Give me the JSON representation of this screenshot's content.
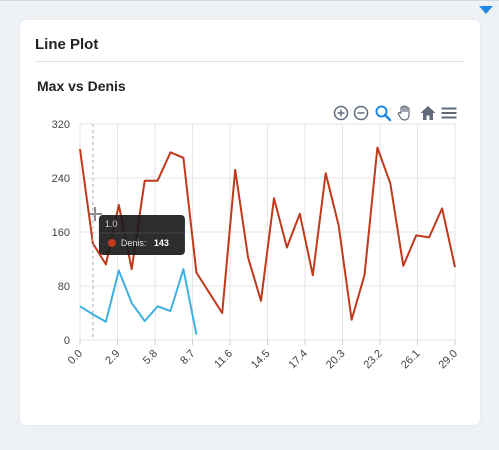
{
  "card": {
    "title": "Line Plot"
  },
  "toolbar": {
    "tools": [
      {
        "name": "zoom-in-icon"
      },
      {
        "name": "zoom-out-icon"
      },
      {
        "name": "zoom-select-icon"
      },
      {
        "name": "pan-hand-icon"
      },
      {
        "name": "reset-home-icon"
      },
      {
        "name": "menu-icon"
      }
    ]
  },
  "tooltip": {
    "x_label": "1.0",
    "series_label": "Denis:",
    "value": "143"
  },
  "colors": {
    "Denis": "#c0391b",
    "Max": "#3fb0e0",
    "accent": "#1e88e5"
  },
  "chart_data": {
    "type": "line",
    "title": "Max vs Denis",
    "xlabel": "",
    "ylabel": "",
    "xlim": [
      0,
      29
    ],
    "ylim": [
      0,
      320
    ],
    "x_ticks": [
      "0.0",
      "2.9",
      "5.8",
      "8.7",
      "11.6",
      "14.5",
      "17.4",
      "20.3",
      "23.2",
      "26.1",
      "29.0"
    ],
    "y_ticks": [
      "0",
      "80",
      "160",
      "240",
      "320"
    ],
    "grid": true,
    "legend": "none",
    "series": [
      {
        "key": "Denis",
        "x": [
          0,
          1,
          2,
          3,
          4,
          5,
          6,
          7,
          8,
          9,
          10,
          11,
          12,
          13,
          14,
          15,
          16,
          17,
          18,
          19,
          20,
          21,
          22,
          23,
          24,
          25,
          26,
          27,
          28,
          29
        ],
        "values": [
          283,
          143,
          112,
          200,
          105,
          236,
          236,
          278,
          270,
          100,
          70,
          40,
          252,
          122,
          58,
          210,
          137,
          187,
          96,
          247,
          170,
          30,
          96,
          285,
          232,
          110,
          155,
          152,
          195,
          108
        ]
      },
      {
        "key": "Max",
        "x": [
          0,
          1,
          2,
          3,
          4,
          5,
          6,
          7,
          8,
          9
        ],
        "values": [
          50,
          38,
          27,
          103,
          55,
          28,
          50,
          43,
          105,
          8
        ]
      }
    ]
  }
}
